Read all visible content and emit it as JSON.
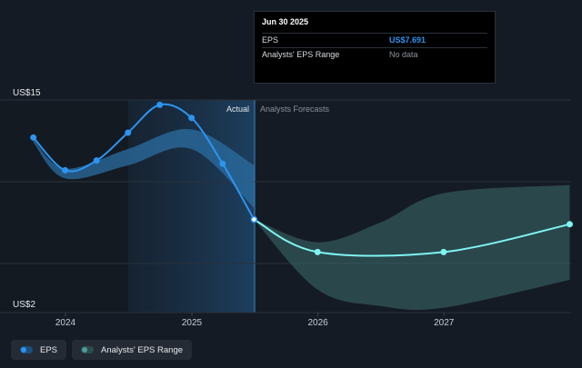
{
  "chart_data": {
    "type": "line",
    "y_axis": {
      "min_label": "US$2",
      "max_label": "US$15",
      "ylim": [
        2,
        15
      ]
    },
    "x_ticks": [
      "2024",
      "2025",
      "2026",
      "2027"
    ],
    "region_labels": {
      "actual": "Actual",
      "forecast": "Analysts Forecasts"
    },
    "series": [
      {
        "name": "EPS",
        "color": "#2d94f0",
        "points": [
          {
            "date": "2023-09-30",
            "value": 12.7
          },
          {
            "date": "2023-12-31",
            "value": 10.7
          },
          {
            "date": "2024-03-31",
            "value": 11.3
          },
          {
            "date": "2024-06-30",
            "value": 13.0
          },
          {
            "date": "2024-09-30",
            "value": 14.7
          },
          {
            "date": "2024-12-31",
            "value": 13.9
          },
          {
            "date": "2025-03-31",
            "value": 11.1
          },
          {
            "date": "2025-06-30",
            "value": 7.691
          }
        ]
      },
      {
        "name": "EPS forecast",
        "color": "#7ff5f2",
        "points": [
          {
            "date": "2025-06-30",
            "value": 7.691
          },
          {
            "date": "2025-12-31",
            "value": 5.7
          },
          {
            "date": "2026-12-31",
            "value": 5.7
          },
          {
            "date": "2027-12-31",
            "value": 7.4
          }
        ]
      },
      {
        "name": "Analysts' EPS Range",
        "color": "#3d6c6d",
        "kind": "band",
        "upper": [
          {
            "date": "2025-06-30",
            "value": 7.691
          },
          {
            "date": "2025-12-31",
            "value": 6.3
          },
          {
            "date": "2026-06-30",
            "value": 7.5
          },
          {
            "date": "2026-12-31",
            "value": 9.3
          },
          {
            "date": "2027-12-31",
            "value": 9.8
          }
        ],
        "lower": [
          {
            "date": "2025-06-30",
            "value": 7.691
          },
          {
            "date": "2025-12-31",
            "value": 3.4
          },
          {
            "date": "2026-06-30",
            "value": 2.4
          },
          {
            "date": "2026-12-31",
            "value": 2.3
          },
          {
            "date": "2027-12-31",
            "value": 4.0
          }
        ]
      },
      {
        "name": "Past estimates range",
        "color": "#2b6ea1",
        "kind": "band",
        "upper": [
          {
            "date": "2023-09-30",
            "value": 12.6
          },
          {
            "date": "2023-12-31",
            "value": 10.8
          },
          {
            "date": "2024-06-30",
            "value": 12.0
          },
          {
            "date": "2024-12-31",
            "value": 13.2
          },
          {
            "date": "2025-06-30",
            "value": 11.0
          }
        ],
        "lower": [
          {
            "date": "2023-09-30",
            "value": 12.4
          },
          {
            "date": "2023-12-31",
            "value": 10.2
          },
          {
            "date": "2024-06-30",
            "value": 11.0
          },
          {
            "date": "2024-12-31",
            "value": 12.0
          },
          {
            "date": "2025-06-30",
            "value": 8.4
          }
        ]
      }
    ],
    "grid": true
  },
  "tooltip": {
    "title": "Jun 30 2025",
    "rows": [
      {
        "label": "EPS",
        "value": "US$7.691"
      },
      {
        "label": "Analysts' EPS Range",
        "value": "No data"
      }
    ]
  },
  "legend": {
    "items": [
      {
        "label": "EPS",
        "color": "#2d94f0"
      },
      {
        "label": "Analysts' EPS Range",
        "color": "#3d6c6d"
      }
    ]
  }
}
